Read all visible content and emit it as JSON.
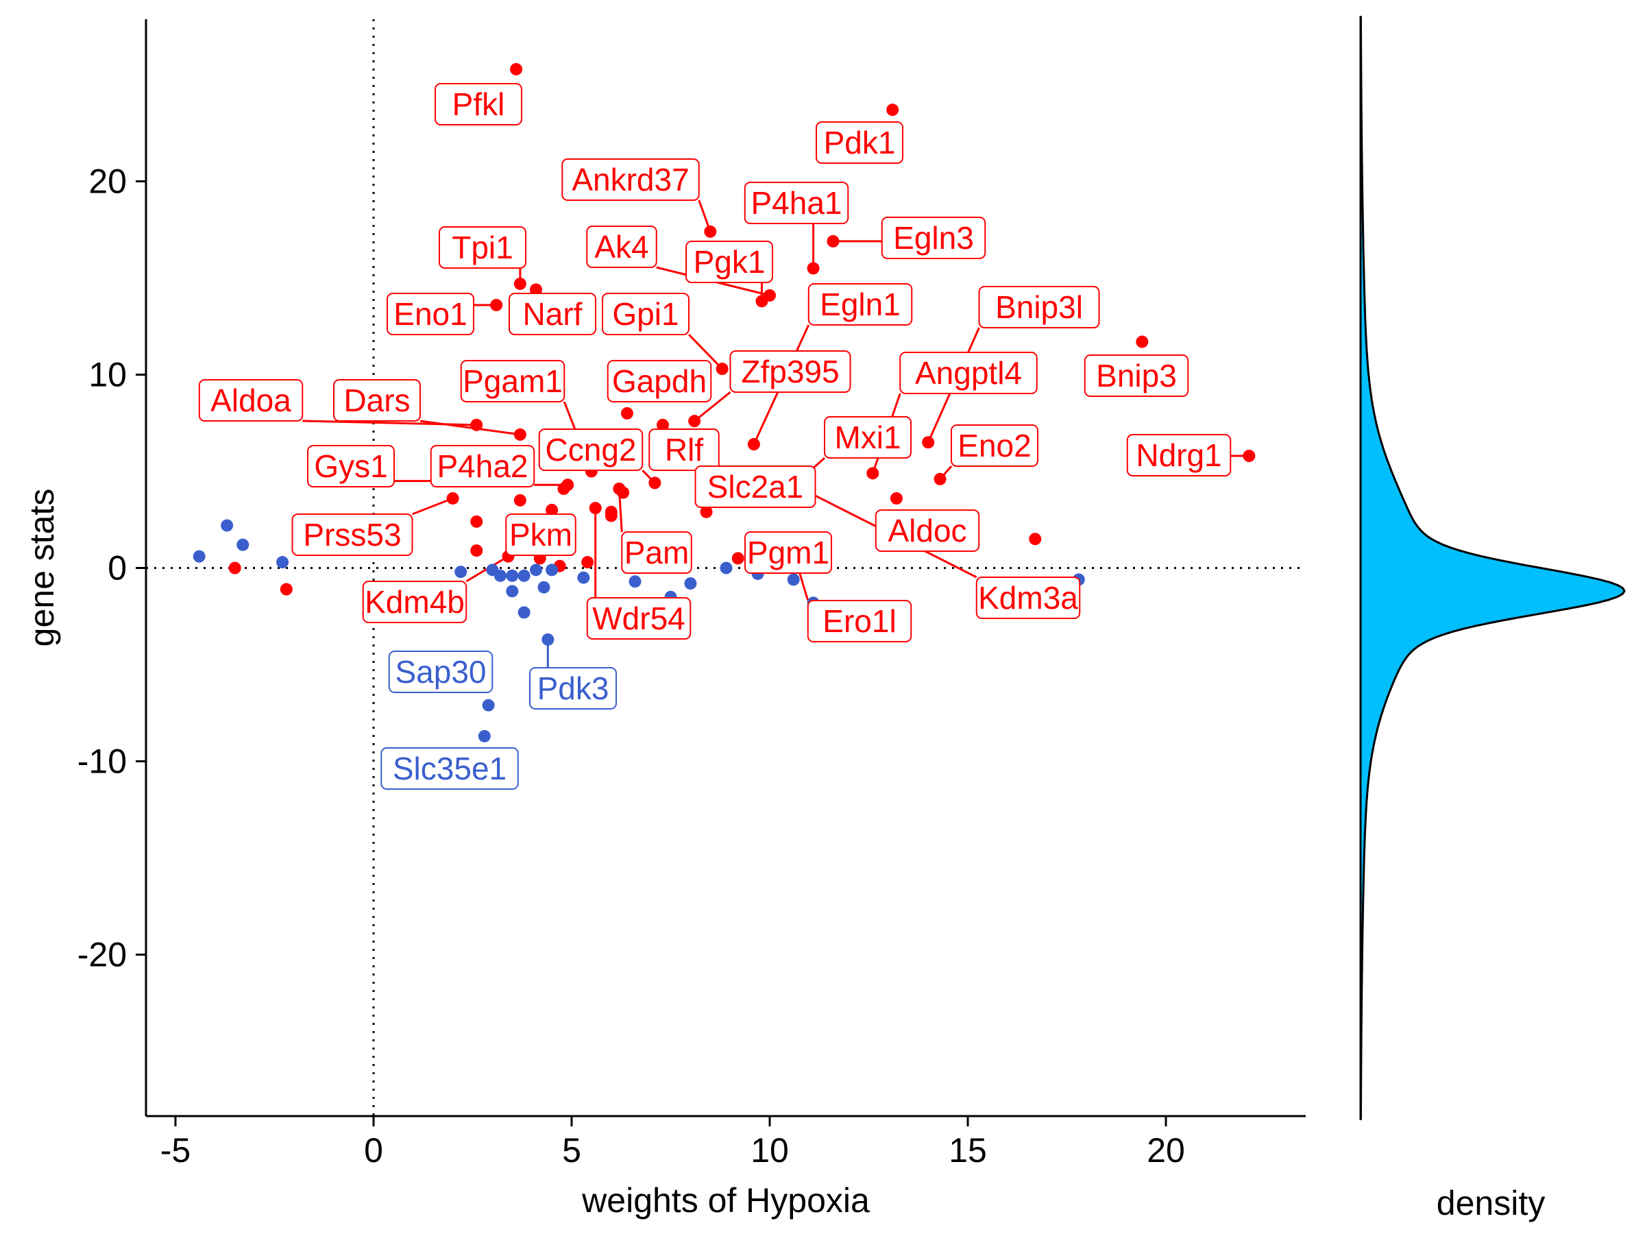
{
  "colors": {
    "up": "#ff0000",
    "down": "#3a5fcd",
    "density_fill": "#00bfff",
    "axis": "#000000"
  },
  "chart_data": {
    "type": "scatter",
    "title": "",
    "xlabel": "weights of Hypoxia",
    "ylabel": "gene stats",
    "xlim": [
      -5.8,
      23.4
    ],
    "ylim": [
      -28.5,
      28.5
    ],
    "xticks": [
      -5,
      0,
      5,
      10,
      15,
      20
    ],
    "yticks": [
      -20,
      -10,
      0,
      10,
      20
    ],
    "reference_lines": {
      "x": 0,
      "y": 0
    },
    "grid": false,
    "marginal_label": "density",
    "labeled_points": [
      {
        "gene": "Pfkl",
        "x": 3.6,
        "y": 25.8,
        "group": "up"
      },
      {
        "gene": "Pdk1",
        "x": 13.1,
        "y": 23.7,
        "group": "up"
      },
      {
        "gene": "Ankrd37",
        "x": 8.5,
        "y": 17.4,
        "group": "up"
      },
      {
        "gene": "P4ha1",
        "x": 11.1,
        "y": 15.5,
        "group": "up"
      },
      {
        "gene": "Egln3",
        "x": 11.6,
        "y": 16.9,
        "group": "up"
      },
      {
        "gene": "Tpi1",
        "x": 3.7,
        "y": 14.7,
        "group": "up"
      },
      {
        "gene": "Ak4",
        "x": 10.0,
        "y": 14.1,
        "group": "up"
      },
      {
        "gene": "Pgk1",
        "x": 9.8,
        "y": 13.8,
        "group": "up"
      },
      {
        "gene": "Eno1",
        "x": 3.1,
        "y": 13.6,
        "group": "up"
      },
      {
        "gene": "Narf",
        "x": 4.1,
        "y": 14.4,
        "group": "up"
      },
      {
        "gene": "Gpi1",
        "x": 8.8,
        "y": 10.3,
        "group": "up"
      },
      {
        "gene": "Egln1",
        "x": 9.6,
        "y": 6.4,
        "group": "up"
      },
      {
        "gene": "Bnip3l",
        "x": 14.0,
        "y": 6.5,
        "group": "up"
      },
      {
        "gene": "Bnip3",
        "x": 19.4,
        "y": 11.7,
        "group": "up"
      },
      {
        "gene": "Gapdh",
        "x": 6.4,
        "y": 8.0,
        "group": "up"
      },
      {
        "gene": "Zfp395",
        "x": 8.1,
        "y": 7.6,
        "group": "up"
      },
      {
        "gene": "Angptl4",
        "x": 12.6,
        "y": 4.9,
        "group": "up"
      },
      {
        "gene": "Pgam1",
        "x": 5.5,
        "y": 5.0,
        "group": "up"
      },
      {
        "gene": "Aldoa",
        "x": 2.6,
        "y": 7.4,
        "group": "up"
      },
      {
        "gene": "Dars",
        "x": 3.7,
        "y": 6.9,
        "group": "up"
      },
      {
        "gene": "Mxi1",
        "x": 10.9,
        "y": 4.8,
        "group": "up"
      },
      {
        "gene": "Eno2",
        "x": 14.3,
        "y": 4.6,
        "group": "up"
      },
      {
        "gene": "Ndrg1",
        "x": 22.1,
        "y": 5.8,
        "group": "up"
      },
      {
        "gene": "Ccng2",
        "x": 7.1,
        "y": 4.4,
        "group": "up"
      },
      {
        "gene": "Rlf",
        "x": 7.3,
        "y": 7.4,
        "group": "up"
      },
      {
        "gene": "Gys1",
        "x": 1.9,
        "y": 4.5,
        "group": "up"
      },
      {
        "gene": "P4ha2",
        "x": 4.9,
        "y": 4.3,
        "group": "up"
      },
      {
        "gene": "Slc2a1",
        "x": 8.4,
        "y": 2.9,
        "group": "up"
      },
      {
        "gene": "Prss53",
        "x": 2.0,
        "y": 3.6,
        "group": "up"
      },
      {
        "gene": "Aldoc",
        "x": 13.2,
        "y": 3.6,
        "group": "up"
      },
      {
        "gene": "Pkm",
        "x": 3.5,
        "y": 2.1,
        "group": "up"
      },
      {
        "gene": "Pam",
        "x": 6.2,
        "y": 4.1,
        "group": "up"
      },
      {
        "gene": "Pgm1",
        "x": 9.2,
        "y": 0.5,
        "group": "up"
      },
      {
        "gene": "Kdm3a",
        "x": 10.9,
        "y": 4.0,
        "group": "up"
      },
      {
        "gene": "Kdm4b",
        "x": 3.4,
        "y": 0.6,
        "group": "up"
      },
      {
        "gene": "Wdr54",
        "x": 5.6,
        "y": 3.1,
        "group": "up"
      },
      {
        "gene": "Ero1l",
        "x": 10.6,
        "y": 0.8,
        "group": "up"
      },
      {
        "gene": "Sap30",
        "x": 2.9,
        "y": -7.1,
        "group": "down"
      },
      {
        "gene": "Pdk3",
        "x": 4.4,
        "y": -3.7,
        "group": "down"
      },
      {
        "gene": "Slc35e1",
        "x": 2.8,
        "y": -8.7,
        "group": "down"
      }
    ],
    "other_points": [
      {
        "x": -3.5,
        "y": 0.0,
        "group": "up"
      },
      {
        "x": -2.2,
        "y": -1.1,
        "group": "up"
      },
      {
        "x": 2.6,
        "y": 2.4,
        "group": "up"
      },
      {
        "x": 2.6,
        "y": 0.9,
        "group": "up"
      },
      {
        "x": 3.7,
        "y": 3.5,
        "group": "up"
      },
      {
        "x": 4.5,
        "y": 3.0,
        "group": "up"
      },
      {
        "x": 4.8,
        "y": 4.1,
        "group": "up"
      },
      {
        "x": 6.0,
        "y": 2.7,
        "group": "up"
      },
      {
        "x": 6.0,
        "y": 2.9,
        "group": "up"
      },
      {
        "x": 5.4,
        "y": 0.3,
        "group": "up"
      },
      {
        "x": 4.2,
        "y": 0.5,
        "group": "up"
      },
      {
        "x": 4.7,
        "y": 0.1,
        "group": "up"
      },
      {
        "x": 6.3,
        "y": 3.9,
        "group": "up"
      },
      {
        "x": 16.7,
        "y": 1.5,
        "group": "up"
      },
      {
        "x": -4.4,
        "y": 0.6,
        "group": "down"
      },
      {
        "x": -3.7,
        "y": 2.2,
        "group": "down"
      },
      {
        "x": -3.3,
        "y": 1.2,
        "group": "down"
      },
      {
        "x": -2.3,
        "y": 0.3,
        "group": "down"
      },
      {
        "x": 2.2,
        "y": -0.2,
        "group": "down"
      },
      {
        "x": 3.0,
        "y": -0.1,
        "group": "down"
      },
      {
        "x": 3.2,
        "y": -0.4,
        "group": "down"
      },
      {
        "x": 3.5,
        "y": -0.4,
        "group": "down"
      },
      {
        "x": 3.5,
        "y": -1.2,
        "group": "down"
      },
      {
        "x": 3.8,
        "y": -2.3,
        "group": "down"
      },
      {
        "x": 3.8,
        "y": -0.4,
        "group": "down"
      },
      {
        "x": 4.1,
        "y": -0.1,
        "group": "down"
      },
      {
        "x": 4.3,
        "y": -1.0,
        "group": "down"
      },
      {
        "x": 4.5,
        "y": -0.1,
        "group": "down"
      },
      {
        "x": 5.3,
        "y": -0.5,
        "group": "down"
      },
      {
        "x": 6.6,
        "y": -0.7,
        "group": "down"
      },
      {
        "x": 7.5,
        "y": -1.5,
        "group": "down"
      },
      {
        "x": 8.0,
        "y": -0.8,
        "group": "down"
      },
      {
        "x": 8.9,
        "y": 0.0,
        "group": "down"
      },
      {
        "x": 9.7,
        "y": -0.3,
        "group": "down"
      },
      {
        "x": 10.6,
        "y": -0.6,
        "group": "down"
      },
      {
        "x": 11.1,
        "y": -1.8,
        "group": "down"
      },
      {
        "x": 17.8,
        "y": -0.6,
        "group": "down"
      }
    ]
  }
}
